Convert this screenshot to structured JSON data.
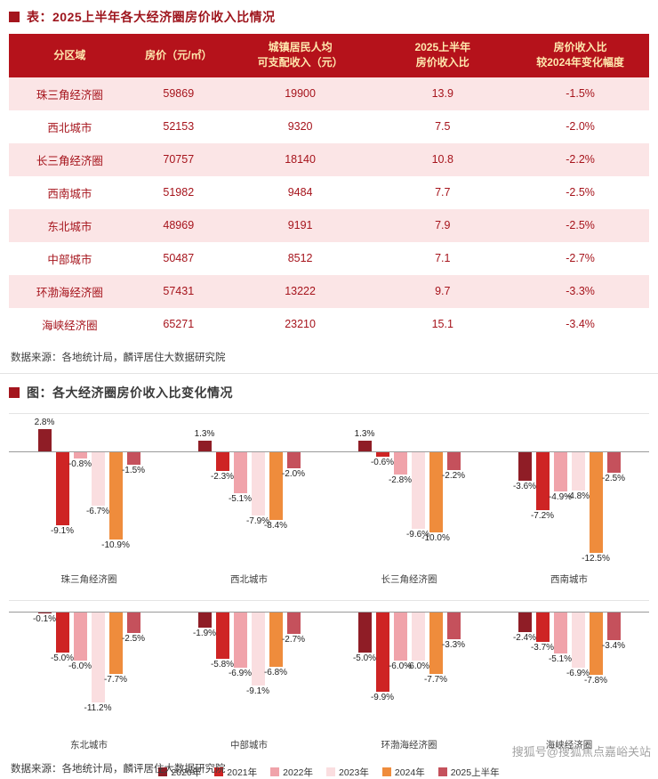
{
  "table_section": {
    "title": "表：2025上半年各大经济圈房价收入比情况",
    "headers": [
      "分区域",
      "房价（元/㎡）",
      "城镇居民人均\n可支配收入（元）",
      "2025上半年\n房价收入比",
      "房价收入比\n较2024年变化幅度"
    ],
    "rows": [
      [
        "珠三角经济圈",
        "59869",
        "19900",
        "13.9",
        "-1.5%"
      ],
      [
        "西北城市",
        "52153",
        "9320",
        "7.5",
        "-2.0%"
      ],
      [
        "长三角经济圈",
        "70757",
        "18140",
        "10.8",
        "-2.2%"
      ],
      [
        "西南城市",
        "51982",
        "9484",
        "7.7",
        "-2.5%"
      ],
      [
        "东北城市",
        "48969",
        "9191",
        "7.9",
        "-2.5%"
      ],
      [
        "中部城市",
        "50487",
        "8512",
        "7.1",
        "-2.7%"
      ],
      [
        "环渤海经济圈",
        "57431",
        "13222",
        "9.7",
        "-3.3%"
      ],
      [
        "海峡经济圈",
        "65271",
        "23210",
        "15.1",
        "-3.4%"
      ]
    ],
    "source": "数据来源：各地统计局，麟评居住大数据研究院"
  },
  "chart_section": {
    "title": "图：各大经济圈房价收入比变化情况",
    "source": "数据来源：各地统计局，麟评居住大数据研究院"
  },
  "chart_data": {
    "type": "bar",
    "title": "各大经济圈房价收入比变化情况",
    "unit": "%",
    "ylim": [
      -13,
      3.5
    ],
    "grid": false,
    "legend_position": "bottom",
    "categories": [
      "珠三角经济圈",
      "西北城市",
      "长三角经济圈",
      "西南城市",
      "东北城市",
      "中部城市",
      "环渤海经济圈",
      "海峡经济圈"
    ],
    "series": [
      {
        "name": "2020年",
        "color": "#8f1d26",
        "values": [
          2.8,
          1.3,
          1.3,
          -3.6,
          -0.1,
          -1.9,
          -5.0,
          -2.4
        ]
      },
      {
        "name": "2021年",
        "color": "#ce2424",
        "values": [
          -9.1,
          -2.3,
          -0.6,
          -7.2,
          -5.0,
          -5.8,
          -9.9,
          -3.7
        ]
      },
      {
        "name": "2022年",
        "color": "#f0a3aa",
        "values": [
          -0.8,
          -5.1,
          -2.8,
          -4.9,
          -6.0,
          -6.9,
          -6.0,
          -5.1
        ]
      },
      {
        "name": "2023年",
        "color": "#fadee0",
        "values": [
          -6.7,
          -7.9,
          -9.6,
          -4.8,
          -11.2,
          -9.1,
          -6.0,
          -6.9
        ]
      },
      {
        "name": "2024年",
        "color": "#ef8c3c",
        "values": [
          -10.9,
          -8.4,
          -10.0,
          -12.5,
          -7.7,
          -6.8,
          -7.7,
          -7.8
        ]
      },
      {
        "name": "2025上半年",
        "color": "#c5515c",
        "values": [
          -1.5,
          -2.0,
          -2.2,
          -2.5,
          -2.5,
          -2.7,
          -3.3,
          -3.4
        ]
      }
    ]
  },
  "colors": {
    "header_bg": "#b5121b",
    "header_text": "#ffe8ae",
    "row_alt_bg": "#fbe5e6",
    "table_text": "#a6141c",
    "accent": "#a4151d"
  },
  "watermark": "搜狐号@搜狐焦点嘉峪关站"
}
